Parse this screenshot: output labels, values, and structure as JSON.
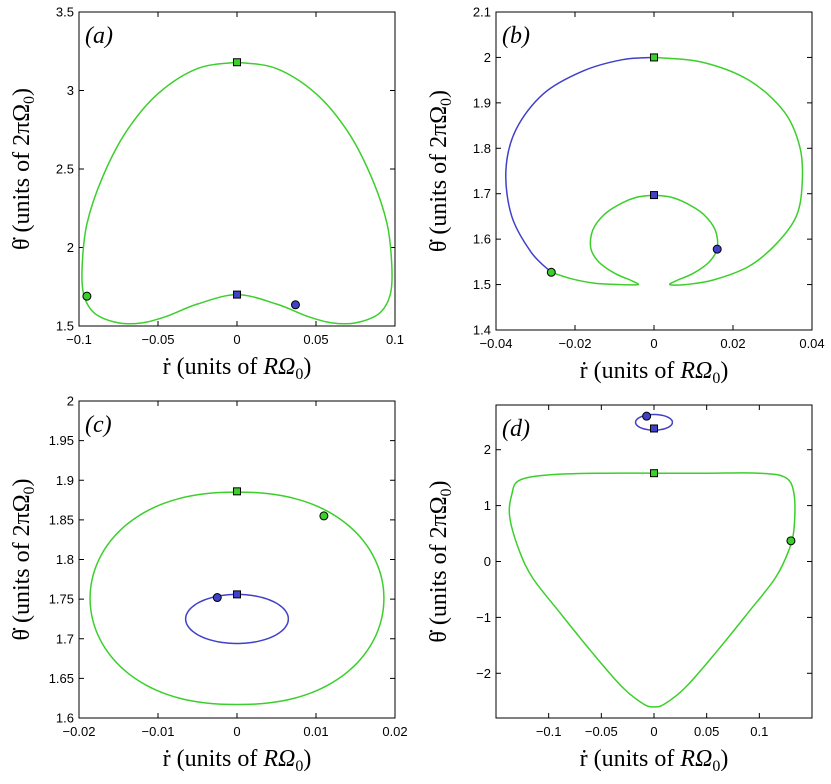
{
  "colors": {
    "green": "#3ccf2c",
    "blue": "#4040c8",
    "frame": "#000000"
  },
  "chart_data": [
    {
      "type": "line",
      "panel_label": "(a)",
      "xlabel_parts": [
        "ṙ (units of ",
        "RΩ",
        "0",
        ")"
      ],
      "ylabel_parts": [
        "θ̇ (units of 2πΩ",
        "0",
        ")"
      ],
      "xlim": [
        -0.1,
        0.1
      ],
      "ylim": [
        1.5,
        3.5
      ],
      "xticks": [
        -0.1,
        -0.05,
        0,
        0.05,
        0.1
      ],
      "xtick_labels": [
        "−0.1",
        "−0.05",
        "0",
        "0.05",
        "0.1"
      ],
      "yticks": [
        1.5,
        2,
        2.5,
        3,
        3.5
      ],
      "ytick_labels": [
        "1.5",
        "2",
        "2.5",
        "3",
        "3.5"
      ],
      "series": [
        {
          "name": "orbit",
          "color": "green",
          "x": [
            0,
            0.025,
            0.05,
            0.07,
            0.085,
            0.095,
            0.098,
            0.097,
            0.09,
            0.075,
            0.06,
            0.045,
            0.025,
            0,
            -0.025,
            -0.045,
            -0.06,
            -0.075,
            -0.09,
            -0.097,
            -0.098,
            -0.095,
            -0.085,
            -0.07,
            -0.05,
            -0.025,
            0
          ],
          "y": [
            3.18,
            3.14,
            2.98,
            2.74,
            2.45,
            2.15,
            1.88,
            1.7,
            1.58,
            1.52,
            1.52,
            1.56,
            1.64,
            1.7,
            1.64,
            1.56,
            1.52,
            1.52,
            1.58,
            1.7,
            1.88,
            2.15,
            2.45,
            2.74,
            2.98,
            3.14,
            3.18
          ]
        }
      ],
      "markers": [
        {
          "shape": "square",
          "color": "green",
          "x": 0,
          "y": 3.18
        },
        {
          "shape": "square",
          "color": "blue",
          "x": 0,
          "y": 1.7
        },
        {
          "shape": "circle",
          "color": "blue",
          "x": 0.037,
          "y": 1.635
        },
        {
          "shape": "circle",
          "color": "green",
          "x": -0.095,
          "y": 1.69
        }
      ]
    },
    {
      "type": "line",
      "panel_label": "(b)",
      "xlabel_parts": [
        "ṙ (units of ",
        "RΩ",
        "0",
        ")"
      ],
      "ylabel_parts": [
        "θ̇ (units of 2πΩ",
        "0",
        ")"
      ],
      "xlim": [
        -0.04,
        0.04
      ],
      "ylim": [
        1.4,
        2.1
      ],
      "xticks": [
        -0.04,
        -0.02,
        0,
        0.02,
        0.04
      ],
      "xtick_labels": [
        "−0.04",
        "−0.02",
        "0",
        "0.02",
        "0.04"
      ],
      "yticks": [
        1.4,
        1.5,
        1.6,
        1.7,
        1.8,
        1.9,
        2,
        2.1
      ],
      "ytick_labels": [
        "1.4",
        "1.5",
        "1.6",
        "1.7",
        "1.8",
        "1.9",
        "2",
        "2.1"
      ],
      "series": [
        {
          "name": "outer-right",
          "color": "green",
          "x": [
            0,
            0.012,
            0.024,
            0.033,
            0.037,
            0.0375,
            0.036,
            0.031,
            0.024,
            0.015,
            0.008,
            0.004,
            0.006
          ],
          "y": [
            2.0,
            1.99,
            1.95,
            1.88,
            1.8,
            1.72,
            1.65,
            1.59,
            1.54,
            1.51,
            1.5,
            1.5,
            1.51
          ]
        },
        {
          "name": "inner-right",
          "color": "green",
          "x": [
            0.006,
            0.01,
            0.014,
            0.016,
            0.0155,
            0.0125,
            0.008,
            0.004,
            0
          ],
          "y": [
            1.51,
            1.525,
            1.55,
            1.58,
            1.62,
            1.655,
            1.68,
            1.693,
            1.697
          ]
        },
        {
          "name": "inner-left",
          "color": "green",
          "x": [
            0,
            -0.004,
            -0.008,
            -0.0125,
            -0.0155,
            -0.016,
            -0.014,
            -0.01,
            -0.006
          ],
          "y": [
            1.697,
            1.693,
            1.68,
            1.655,
            1.62,
            1.58,
            1.55,
            1.525,
            1.51
          ]
        },
        {
          "name": "outer-left-bottom",
          "color": "green",
          "x": [
            -0.006,
            -0.004,
            -0.008,
            -0.015,
            -0.021,
            -0.026
          ],
          "y": [
            1.51,
            1.5,
            1.5,
            1.503,
            1.513,
            1.527
          ]
        },
        {
          "name": "outer-left-top",
          "color": "blue",
          "x": [
            -0.026,
            -0.031,
            -0.036,
            -0.0375,
            -0.035,
            -0.028,
            -0.018,
            -0.008,
            0
          ],
          "y": [
            1.527,
            1.57,
            1.65,
            1.75,
            1.84,
            1.92,
            1.97,
            1.995,
            2.0
          ]
        }
      ],
      "markers": [
        {
          "shape": "square",
          "color": "green",
          "x": 0,
          "y": 2.0
        },
        {
          "shape": "square",
          "color": "blue",
          "x": 0,
          "y": 1.697
        },
        {
          "shape": "circle",
          "color": "blue",
          "x": 0.016,
          "y": 1.578
        },
        {
          "shape": "circle",
          "color": "green",
          "x": -0.026,
          "y": 1.527
        }
      ]
    },
    {
      "type": "line",
      "panel_label": "(c)",
      "xlabel_parts": [
        "ṙ (units of ",
        "RΩ",
        "0",
        ")"
      ],
      "ylabel_parts": [
        "θ̇ (units of 2πΩ",
        "0",
        ")"
      ],
      "xlim": [
        -0.02,
        0.02
      ],
      "ylim": [
        1.6,
        2.0
      ],
      "xticks": [
        -0.02,
        -0.01,
        0,
        0.01,
        0.02
      ],
      "xtick_labels": [
        "−0.02",
        "−0.01",
        "0",
        "0.01",
        "0.02"
      ],
      "yticks": [
        1.6,
        1.65,
        1.7,
        1.75,
        1.8,
        1.85,
        1.9,
        1.95,
        2
      ],
      "ytick_labels": [
        "1.6",
        "1.65",
        "1.7",
        "1.75",
        "1.8",
        "1.85",
        "1.9",
        "1.95",
        "2"
      ],
      "series": [
        {
          "name": "outer",
          "color": "green",
          "shape": "ellipse",
          "cx": 0,
          "cy": 1.751,
          "rx": 0.0186,
          "ry": 0.134,
          "sharpen": 1.15
        },
        {
          "name": "inner",
          "color": "blue",
          "shape": "ellipse",
          "cx": 0,
          "cy": 1.725,
          "rx": 0.0065,
          "ry": 0.031,
          "sharpen": 1.0
        }
      ],
      "markers": [
        {
          "shape": "square",
          "color": "green",
          "x": 0,
          "y": 1.886
        },
        {
          "shape": "square",
          "color": "blue",
          "x": 0,
          "y": 1.756
        },
        {
          "shape": "circle",
          "color": "green",
          "x": 0.011,
          "y": 1.855
        },
        {
          "shape": "circle",
          "color": "blue",
          "x": -0.0025,
          "y": 1.752
        }
      ]
    },
    {
      "type": "line",
      "panel_label": "(d)",
      "xlabel_parts": [
        "ṙ (units of ",
        "RΩ",
        "0",
        ")"
      ],
      "ylabel_parts": [
        "θ̇ (units of 2πΩ",
        "0",
        ")"
      ],
      "xlim": [
        -0.15,
        0.15
      ],
      "ylim": [
        -2.8,
        2.8
      ],
      "xticks": [
        -0.1,
        -0.05,
        0,
        0.05,
        0.1
      ],
      "xtick_labels": [
        "−0.1",
        "−0.05",
        "0",
        "0.05",
        "0.1"
      ],
      "yticks": [
        -2,
        -1,
        0,
        1,
        2
      ],
      "ytick_labels": [
        "−2",
        "−1",
        "0",
        "1",
        "2"
      ],
      "series": [
        {
          "name": "green-orbit",
          "color": "green",
          "x": [
            0,
            0.05,
            0.1,
            0.125,
            0.133,
            0.133,
            0.128,
            0.115,
            0.09,
            0.06,
            0.03,
            0.01,
            0,
            -0.01,
            -0.03,
            -0.06,
            -0.09,
            -0.115,
            -0.128,
            -0.137,
            -0.135,
            -0.128,
            -0.1,
            -0.05,
            0
          ],
          "y": [
            1.58,
            1.58,
            1.58,
            1.5,
            1.2,
            0.6,
            0.2,
            -0.3,
            -0.9,
            -1.6,
            -2.25,
            -2.55,
            -2.6,
            -2.55,
            -2.25,
            -1.6,
            -0.9,
            -0.3,
            0.2,
            0.8,
            1.2,
            1.45,
            1.55,
            1.58,
            1.58
          ]
        },
        {
          "name": "blue-orbit",
          "color": "blue",
          "shape": "ellipse",
          "cx": 0,
          "cy": 2.49,
          "rx": 0.0175,
          "ry": 0.14,
          "sharpen": 1.0
        }
      ],
      "markers": [
        {
          "shape": "square",
          "color": "green",
          "x": 0,
          "y": 1.58
        },
        {
          "shape": "square",
          "color": "blue",
          "x": 0,
          "y": 2.38
        },
        {
          "shape": "circle",
          "color": "blue",
          "x": -0.007,
          "y": 2.6
        },
        {
          "shape": "circle",
          "color": "green",
          "x": 0.13,
          "y": 0.37
        }
      ]
    }
  ]
}
